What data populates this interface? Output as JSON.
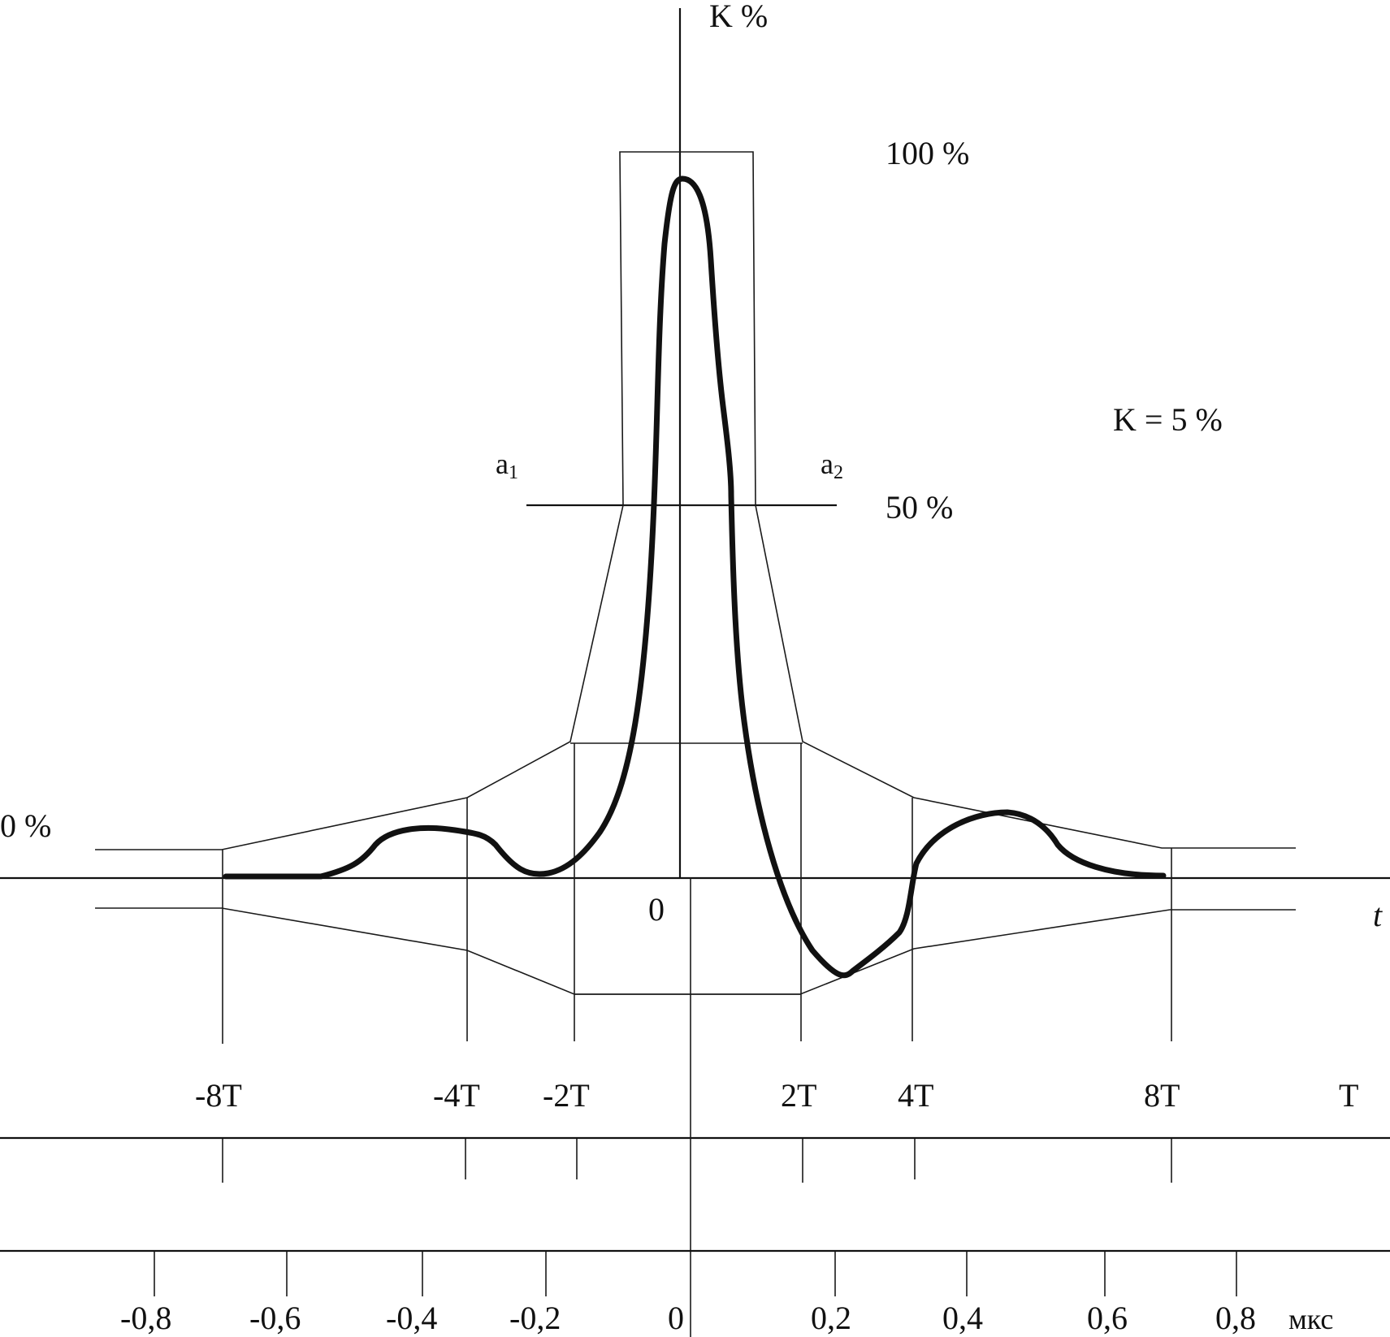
{
  "labels": {
    "y_axis": "K %",
    "t_axis": "t",
    "pct_100": "100 %",
    "pct_50": "50 %",
    "pct_0": "0 %",
    "k_value": "K = 5 %",
    "a1": "a",
    "a1_sub": "1",
    "a2": "a",
    "a2_sub": "2",
    "origin": "0",
    "t_row_unit": "T",
    "us_row_unit": "мкс"
  },
  "t_ticks": [
    "-8T",
    "-4T",
    "-2T",
    "2T",
    "4T",
    "8T"
  ],
  "us_ticks": [
    "-0,8",
    "-0,6",
    "-0,4",
    "-0,2",
    "0",
    "0,2",
    "0,4",
    "0,6",
    "0,8"
  ],
  "colors": {
    "ink": "#111111",
    "background": "#ffffff"
  }
}
